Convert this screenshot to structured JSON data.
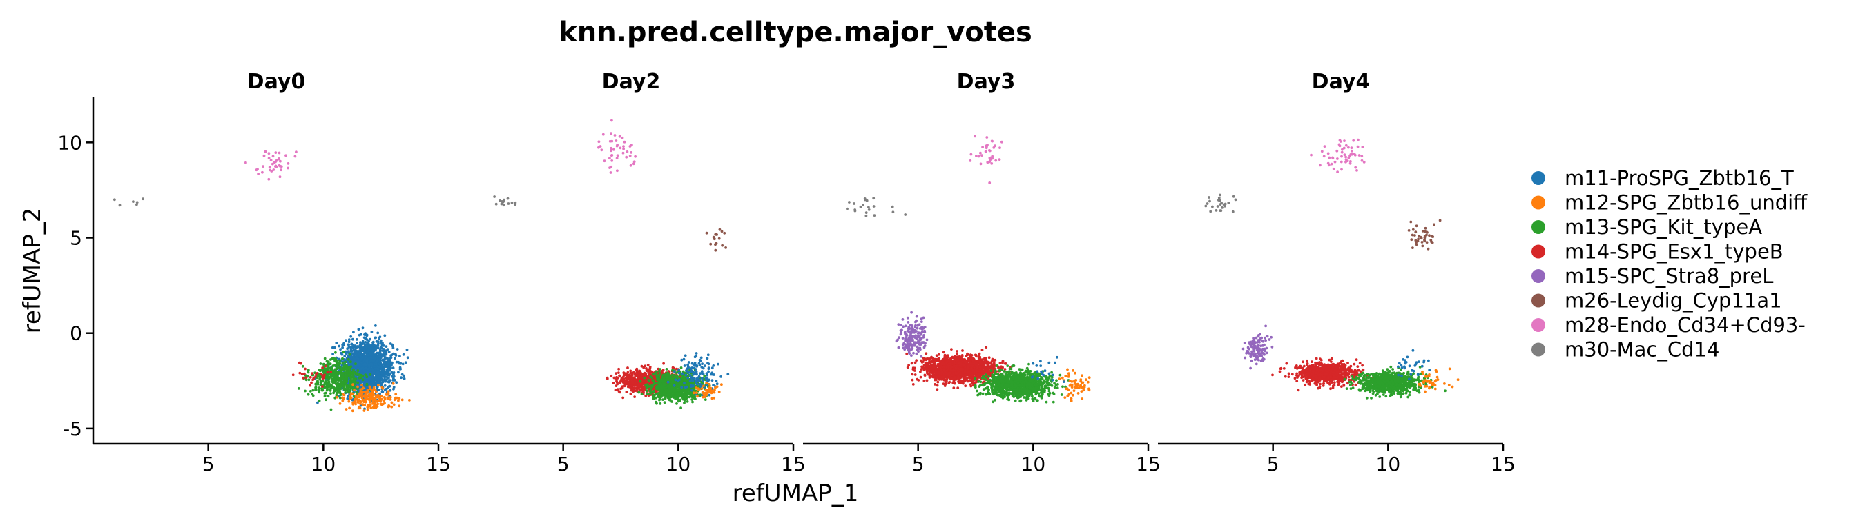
{
  "chart_data": {
    "type": "scatter",
    "title": "knn.pred.celltype.major_votes",
    "xlabel": "refUMAP_1",
    "ylabel": "refUMAP_2",
    "xlim": [
      0,
      15
    ],
    "ylim": [
      -5.8,
      12.4
    ],
    "xticks": [
      5,
      10,
      15
    ],
    "yticks": [
      -5,
      0,
      5,
      10
    ],
    "xtick_labels": [
      "5",
      "10",
      "15"
    ],
    "ytick_labels": [
      "-5",
      "0",
      "5",
      "10"
    ],
    "grid": false,
    "legend_position": "right",
    "facets": [
      "Day0",
      "Day2",
      "Day3",
      "Day4"
    ],
    "legend": [
      {
        "label": "m11-ProSPG_Zbtb16_T",
        "color": "#1f77b4"
      },
      {
        "label": "m12-SPG_Zbtb16_undiff",
        "color": "#ff7f0e"
      },
      {
        "label": "m13-SPG_Kit_typeA",
        "color": "#2ca02c"
      },
      {
        "label": "m14-SPG_Esx1_typeB",
        "color": "#d62728"
      },
      {
        "label": "m15-SPC_Stra8_preL",
        "color": "#9467bd"
      },
      {
        "label": "m26-Leydig_Cyp11a1",
        "color": "#8c564b"
      },
      {
        "label": "m28-Endo_Cd34+Cd93-",
        "color": "#e377c2"
      },
      {
        "label": "m30-Mac_Cd14",
        "color": "#7f7f7f"
      }
    ],
    "clusters": [
      {
        "facet": "Day0",
        "celltype": "m11-ProSPG_Zbtb16_T",
        "n": 1800,
        "center": [
          11.9,
          -1.8
        ],
        "spread": [
          1.0,
          1.2
        ]
      },
      {
        "facet": "Day0",
        "celltype": "m13-SPG_Kit_typeA",
        "n": 500,
        "center": [
          10.6,
          -2.4
        ],
        "spread": [
          1.0,
          0.9
        ]
      },
      {
        "facet": "Day0",
        "celltype": "m12-SPG_Zbtb16_undiff",
        "n": 200,
        "center": [
          12.0,
          -3.4
        ],
        "spread": [
          1.0,
          0.5
        ]
      },
      {
        "facet": "Day0",
        "celltype": "m14-SPG_Esx1_typeB",
        "n": 30,
        "center": [
          9.7,
          -2.2
        ],
        "spread": [
          0.7,
          0.6
        ]
      },
      {
        "facet": "Day0",
        "celltype": "m28-Endo_Cd34+Cd93-",
        "n": 40,
        "center": [
          7.9,
          8.9
        ],
        "spread": [
          0.7,
          0.7
        ]
      },
      {
        "facet": "Day0",
        "celltype": "m30-Mac_Cd14",
        "n": 6,
        "center": [
          1.8,
          6.9
        ],
        "spread": [
          0.5,
          0.3
        ]
      },
      {
        "facet": "Day2",
        "celltype": "m14-SPG_Esx1_typeB",
        "n": 700,
        "center": [
          8.6,
          -2.5
        ],
        "spread": [
          1.1,
          0.55
        ]
      },
      {
        "facet": "Day2",
        "celltype": "m13-SPG_Kit_typeA",
        "n": 900,
        "center": [
          9.9,
          -2.8
        ],
        "spread": [
          1.0,
          0.6
        ]
      },
      {
        "facet": "Day2",
        "celltype": "m11-ProSPG_Zbtb16_T",
        "n": 130,
        "center": [
          10.8,
          -2.2
        ],
        "spread": [
          0.8,
          0.8
        ]
      },
      {
        "facet": "Day2",
        "celltype": "m12-SPG_Zbtb16_undiff",
        "n": 40,
        "center": [
          11.2,
          -3.0
        ],
        "spread": [
          0.6,
          0.4
        ]
      },
      {
        "facet": "Day2",
        "celltype": "m28-Endo_Cd34+Cd93-",
        "n": 45,
        "center": [
          7.4,
          9.6
        ],
        "spread": [
          0.8,
          0.9
        ]
      },
      {
        "facet": "Day2",
        "celltype": "m30-Mac_Cd14",
        "n": 14,
        "center": [
          2.5,
          6.9
        ],
        "spread": [
          0.5,
          0.3
        ]
      },
      {
        "facet": "Day2",
        "celltype": "m26-Leydig_Cyp11a1",
        "n": 16,
        "center": [
          11.6,
          5.0
        ],
        "spread": [
          0.4,
          0.5
        ]
      },
      {
        "facet": "Day3",
        "celltype": "m14-SPG_Esx1_typeB",
        "n": 1500,
        "center": [
          6.8,
          -1.9
        ],
        "spread": [
          1.4,
          0.6
        ]
      },
      {
        "facet": "Day3",
        "celltype": "m13-SPG_Kit_typeA",
        "n": 1100,
        "center": [
          9.3,
          -2.7
        ],
        "spread": [
          1.3,
          0.6
        ]
      },
      {
        "facet": "Day3",
        "celltype": "m15-SPC_Stra8_preL",
        "n": 180,
        "center": [
          4.8,
          -0.2
        ],
        "spread": [
          0.5,
          0.8
        ]
      },
      {
        "facet": "Day3",
        "celltype": "m12-SPG_Zbtb16_undiff",
        "n": 60,
        "center": [
          11.8,
          -2.7
        ],
        "spread": [
          0.6,
          0.6
        ]
      },
      {
        "facet": "Day3",
        "celltype": "m11-ProSPG_Zbtb16_T",
        "n": 20,
        "center": [
          10.6,
          -2.0
        ],
        "spread": [
          0.8,
          0.7
        ]
      },
      {
        "facet": "Day3",
        "celltype": "m28-Endo_Cd34+Cd93-",
        "n": 35,
        "center": [
          8.0,
          9.3
        ],
        "spread": [
          0.7,
          0.9
        ]
      },
      {
        "facet": "Day3",
        "celltype": "m30-Mac_Cd14",
        "n": 20,
        "center": [
          2.8,
          6.6
        ],
        "spread": [
          0.9,
          0.4
        ]
      },
      {
        "facet": "Day4",
        "celltype": "m14-SPG_Esx1_typeB",
        "n": 800,
        "center": [
          7.3,
          -2.1
        ],
        "spread": [
          1.2,
          0.5
        ]
      },
      {
        "facet": "Day4",
        "celltype": "m13-SPG_Kit_typeA",
        "n": 900,
        "center": [
          10.0,
          -2.6
        ],
        "spread": [
          1.2,
          0.5
        ]
      },
      {
        "facet": "Day4",
        "celltype": "m15-SPC_Stra8_preL",
        "n": 120,
        "center": [
          4.3,
          -0.8
        ],
        "spread": [
          0.5,
          0.7
        ]
      },
      {
        "facet": "Day4",
        "celltype": "m12-SPG_Zbtb16_undiff",
        "n": 40,
        "center": [
          11.8,
          -2.5
        ],
        "spread": [
          0.6,
          0.5
        ]
      },
      {
        "facet": "Day4",
        "celltype": "m11-ProSPG_Zbtb16_T",
        "n": 30,
        "center": [
          11.0,
          -1.7
        ],
        "spread": [
          0.7,
          0.7
        ]
      },
      {
        "facet": "Day4",
        "celltype": "m28-Endo_Cd34+Cd93-",
        "n": 55,
        "center": [
          8.0,
          9.3
        ],
        "spread": [
          0.8,
          0.9
        ]
      },
      {
        "facet": "Day4",
        "celltype": "m30-Mac_Cd14",
        "n": 24,
        "center": [
          2.6,
          6.7
        ],
        "spread": [
          0.8,
          0.5
        ]
      },
      {
        "facet": "Day4",
        "celltype": "m26-Leydig_Cyp11a1",
        "n": 40,
        "center": [
          11.5,
          5.1
        ],
        "spread": [
          0.6,
          0.6
        ]
      }
    ]
  }
}
